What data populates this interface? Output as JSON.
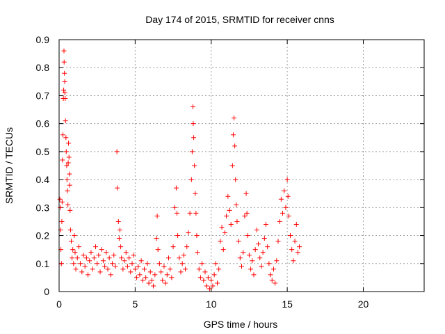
{
  "chart_data": {
    "type": "scatter",
    "title": "Day 174 of 2015, SRMTID for receiver cnns",
    "xlabel": "GPS time / hours",
    "ylabel": "SRMTID / TECUs",
    "xlim": [
      0,
      24
    ],
    "ylim": [
      0,
      0.9
    ],
    "xticks": [
      0,
      5,
      10,
      15,
      20
    ],
    "xtick_labels": [
      "0",
      "5",
      "10",
      "15",
      "20"
    ],
    "yticks": [
      0,
      0.1,
      0.2,
      0.3,
      0.4,
      0.5,
      0.6,
      0.7,
      0.8,
      0.9
    ],
    "ytick_labels": [
      "0",
      "0.1",
      "0.2",
      "0.3",
      "0.4",
      "0.5",
      "0.6",
      "0.7",
      "0.8",
      "0.9"
    ],
    "grid": true,
    "marker": "plus",
    "color": "#ff0000",
    "series": [
      {
        "points": [
          [
            0.05,
            0.33
          ],
          [
            0.08,
            0.3
          ],
          [
            0.1,
            0.22
          ],
          [
            0.12,
            0.15
          ],
          [
            0.15,
            0.1
          ],
          [
            0.18,
            0.25
          ],
          [
            0.2,
            0.32
          ],
          [
            0.22,
            0.47
          ],
          [
            0.25,
            0.56
          ],
          [
            0.28,
            0.69
          ],
          [
            0.3,
            0.72
          ],
          [
            0.32,
            0.86
          ],
          [
            0.33,
            0.82
          ],
          [
            0.35,
            0.78
          ],
          [
            0.37,
            0.75
          ],
          [
            0.38,
            0.71
          ],
          [
            0.4,
            0.69
          ],
          [
            0.42,
            0.61
          ],
          [
            0.45,
            0.55
          ],
          [
            0.47,
            0.5
          ],
          [
            0.5,
            0.45
          ],
          [
            0.52,
            0.4
          ],
          [
            0.55,
            0.36
          ],
          [
            0.58,
            0.31
          ],
          [
            0.6,
            0.46
          ],
          [
            0.62,
            0.53
          ],
          [
            0.65,
            0.48
          ],
          [
            0.68,
            0.42
          ],
          [
            0.7,
            0.38
          ],
          [
            0.72,
            0.29
          ],
          [
            0.75,
            0.22
          ],
          [
            0.8,
            0.18
          ],
          [
            0.85,
            0.12
          ],
          [
            0.9,
            0.15
          ],
          [
            0.95,
            0.1
          ],
          [
            1.0,
            0.2
          ],
          [
            1.05,
            0.14
          ],
          [
            1.1,
            0.08
          ],
          [
            1.2,
            0.12
          ],
          [
            1.3,
            0.16
          ],
          [
            1.4,
            0.1
          ],
          [
            1.5,
            0.07
          ],
          [
            1.6,
            0.13
          ],
          [
            1.7,
            0.09
          ],
          [
            1.8,
            0.12
          ],
          [
            1.9,
            0.06
          ],
          [
            2.0,
            0.11
          ],
          [
            2.1,
            0.14
          ],
          [
            2.2,
            0.08
          ],
          [
            2.3,
            0.12
          ],
          [
            2.4,
            0.16
          ],
          [
            2.5,
            0.1
          ],
          [
            2.6,
            0.13
          ],
          [
            2.7,
            0.07
          ],
          [
            2.8,
            0.15
          ],
          [
            2.9,
            0.11
          ],
          [
            3.0,
            0.09
          ],
          [
            3.1,
            0.14
          ],
          [
            3.2,
            0.08
          ],
          [
            3.3,
            0.12
          ],
          [
            3.4,
            0.06
          ],
          [
            3.5,
            0.1
          ],
          [
            3.6,
            0.13
          ],
          [
            3.7,
            0.09
          ],
          [
            3.8,
            0.5
          ],
          [
            3.82,
            0.37
          ],
          [
            3.9,
            0.25
          ],
          [
            3.95,
            0.19
          ],
          [
            4.0,
            0.22
          ],
          [
            4.05,
            0.16
          ],
          [
            4.1,
            0.12
          ],
          [
            4.2,
            0.08
          ],
          [
            4.3,
            0.11
          ],
          [
            4.4,
            0.14
          ],
          [
            4.5,
            0.09
          ],
          [
            4.6,
            0.12
          ],
          [
            4.7,
            0.07
          ],
          [
            4.8,
            0.1
          ],
          [
            4.9,
            0.13
          ],
          [
            5.0,
            0.08
          ],
          [
            5.1,
            0.05
          ],
          [
            5.2,
            0.09
          ],
          [
            5.3,
            0.06
          ],
          [
            5.4,
            0.11
          ],
          [
            5.5,
            0.04
          ],
          [
            5.6,
            0.08
          ],
          [
            5.7,
            0.05
          ],
          [
            5.8,
            0.1
          ],
          [
            5.9,
            0.03
          ],
          [
            6.0,
            0.07
          ],
          [
            6.1,
            0.04
          ],
          [
            6.2,
            0.02
          ],
          [
            6.3,
            0.06
          ],
          [
            6.4,
            0.19
          ],
          [
            6.45,
            0.27
          ],
          [
            6.5,
            0.15
          ],
          [
            6.6,
            0.1
          ],
          [
            6.7,
            0.07
          ],
          [
            6.8,
            0.04
          ],
          [
            6.9,
            0.09
          ],
          [
            7.0,
            0.03
          ],
          [
            7.1,
            0.06
          ],
          [
            7.2,
            0.12
          ],
          [
            7.3,
            0.08
          ],
          [
            7.4,
            0.05
          ],
          [
            7.5,
            0.16
          ],
          [
            7.6,
            0.3
          ],
          [
            7.7,
            0.37
          ],
          [
            7.75,
            0.28
          ],
          [
            7.8,
            0.2
          ],
          [
            7.9,
            0.12
          ],
          [
            8.0,
            0.07
          ],
          [
            8.1,
            0.1
          ],
          [
            8.2,
            0.13
          ],
          [
            8.3,
            0.08
          ],
          [
            8.4,
            0.16
          ],
          [
            8.5,
            0.21
          ],
          [
            8.6,
            0.28
          ],
          [
            8.7,
            0.4
          ],
          [
            8.75,
            0.5
          ],
          [
            8.8,
            0.66
          ],
          [
            8.82,
            0.6
          ],
          [
            8.85,
            0.55
          ],
          [
            8.9,
            0.45
          ],
          [
            8.95,
            0.35
          ],
          [
            9.0,
            0.28
          ],
          [
            9.05,
            0.2
          ],
          [
            9.1,
            0.14
          ],
          [
            9.2,
            0.08
          ],
          [
            9.3,
            0.05
          ],
          [
            9.4,
            0.1
          ],
          [
            9.5,
            0.04
          ],
          [
            9.6,
            0.07
          ],
          [
            9.7,
            0.02
          ],
          [
            9.8,
            0.05
          ],
          [
            9.9,
            0.01
          ],
          [
            10.0,
            0.04
          ],
          [
            10.1,
            0.02
          ],
          [
            10.2,
            0.06
          ],
          [
            10.3,
            0.1
          ],
          [
            10.4,
            0.03
          ],
          [
            10.5,
            0.08
          ],
          [
            10.6,
            0.18
          ],
          [
            10.7,
            0.23
          ],
          [
            10.8,
            0.15
          ],
          [
            10.9,
            0.21
          ],
          [
            11.0,
            0.27
          ],
          [
            11.1,
            0.34
          ],
          [
            11.2,
            0.29
          ],
          [
            11.3,
            0.24
          ],
          [
            11.4,
            0.45
          ],
          [
            11.45,
            0.56
          ],
          [
            11.5,
            0.62
          ],
          [
            11.55,
            0.52
          ],
          [
            11.6,
            0.4
          ],
          [
            11.65,
            0.31
          ],
          [
            11.7,
            0.25
          ],
          [
            11.8,
            0.18
          ],
          [
            11.9,
            0.12
          ],
          [
            12.0,
            0.09
          ],
          [
            12.1,
            0.14
          ],
          [
            12.2,
            0.27
          ],
          [
            12.3,
            0.35
          ],
          [
            12.35,
            0.28
          ],
          [
            12.4,
            0.2
          ],
          [
            12.5,
            0.13
          ],
          [
            12.6,
            0.08
          ],
          [
            12.7,
            0.11
          ],
          [
            12.8,
            0.06
          ],
          [
            12.9,
            0.15
          ],
          [
            13.0,
            0.22
          ],
          [
            13.1,
            0.17
          ],
          [
            13.2,
            0.12
          ],
          [
            13.3,
            0.09
          ],
          [
            13.4,
            0.14
          ],
          [
            13.5,
            0.19
          ],
          [
            13.6,
            0.24
          ],
          [
            13.7,
            0.16
          ],
          [
            13.8,
            0.1
          ],
          [
            13.9,
            0.06
          ],
          [
            14.0,
            0.04
          ],
          [
            14.1,
            0.08
          ],
          [
            14.2,
            0.03
          ],
          [
            14.3,
            0.11
          ],
          [
            14.4,
            0.18
          ],
          [
            14.5,
            0.25
          ],
          [
            14.6,
            0.33
          ],
          [
            14.7,
            0.28
          ],
          [
            14.8,
            0.36
          ],
          [
            14.9,
            0.3
          ],
          [
            15.0,
            0.4
          ],
          [
            15.05,
            0.34
          ],
          [
            15.1,
            0.27
          ],
          [
            15.2,
            0.2
          ],
          [
            15.3,
            0.15
          ],
          [
            15.4,
            0.11
          ],
          [
            15.5,
            0.18
          ],
          [
            15.6,
            0.24
          ],
          [
            15.7,
            0.14
          ],
          [
            15.8,
            0.16
          ]
        ]
      }
    ]
  }
}
